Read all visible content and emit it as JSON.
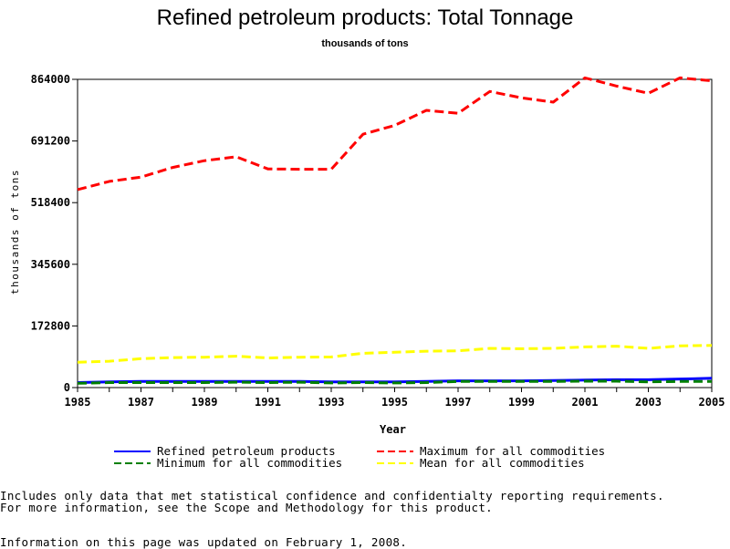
{
  "page": {
    "title": "Refined petroleum products: Total Tonnage",
    "subtitle": "thousands of tons",
    "notes": [
      "Includes only data that met statistical confidence and confidentialty reporting requirements.",
      "For more information, see the Scope and Methodology for this product.",
      "Information on this page was updated on February 1, 2008."
    ]
  },
  "chart_data": {
    "type": "line",
    "title": "Refined petroleum products: Total Tonnage",
    "subtitle": "thousands of tons",
    "xlabel": "Year",
    "ylabel": "thousands of tons",
    "x": [
      1985,
      1986,
      1987,
      1988,
      1989,
      1990,
      1991,
      1992,
      1993,
      1994,
      1995,
      1996,
      1997,
      1998,
      1999,
      2000,
      2001,
      2002,
      2003,
      2004,
      2005
    ],
    "xlim": [
      1985,
      2005
    ],
    "ylim": [
      0,
      864000
    ],
    "x_ticks": [
      "1985",
      "1987",
      "1989",
      "1991",
      "1993",
      "1995",
      "1997",
      "1999",
      "2001",
      "2003",
      "2005"
    ],
    "y_ticks": [
      "0",
      "172800",
      "345600",
      "518400",
      "691200",
      "864000"
    ],
    "grid": false,
    "legend_position": "bottom",
    "series": [
      {
        "name": "Refined petroleum products",
        "color": "#0000ff",
        "style": "solid",
        "values": [
          14000,
          16000,
          17000,
          17000,
          17000,
          17000,
          17000,
          17000,
          16000,
          16000,
          16000,
          17000,
          19000,
          19000,
          19000,
          20000,
          21000,
          22000,
          22000,
          24000,
          26000
        ]
      },
      {
        "name": "Maximum for all commodities",
        "color": "#ff0000",
        "style": "dashed",
        "values": [
          555000,
          578000,
          590000,
          617000,
          636000,
          647000,
          613000,
          612000,
          612000,
          710000,
          735000,
          777000,
          769000,
          830000,
          812000,
          800000,
          868000,
          845000,
          825000,
          868000,
          860000
        ]
      },
      {
        "name": "Minimum for all commodities",
        "color": "#008000",
        "style": "dashed",
        "values": [
          12000,
          14000,
          14000,
          14000,
          14000,
          15000,
          14000,
          15000,
          13000,
          14000,
          13000,
          14000,
          17000,
          17000,
          17000,
          17000,
          18000,
          18000,
          16000,
          17000,
          17000
        ]
      },
      {
        "name": "Mean for all commodities",
        "color": "#ffff00",
        "style": "dashed",
        "values": [
          71000,
          74000,
          81000,
          84000,
          85000,
          88000,
          83000,
          85000,
          86000,
          96000,
          99000,
          102000,
          103000,
          110000,
          109000,
          110000,
          114000,
          116000,
          110000,
          117000,
          118000
        ]
      }
    ]
  }
}
